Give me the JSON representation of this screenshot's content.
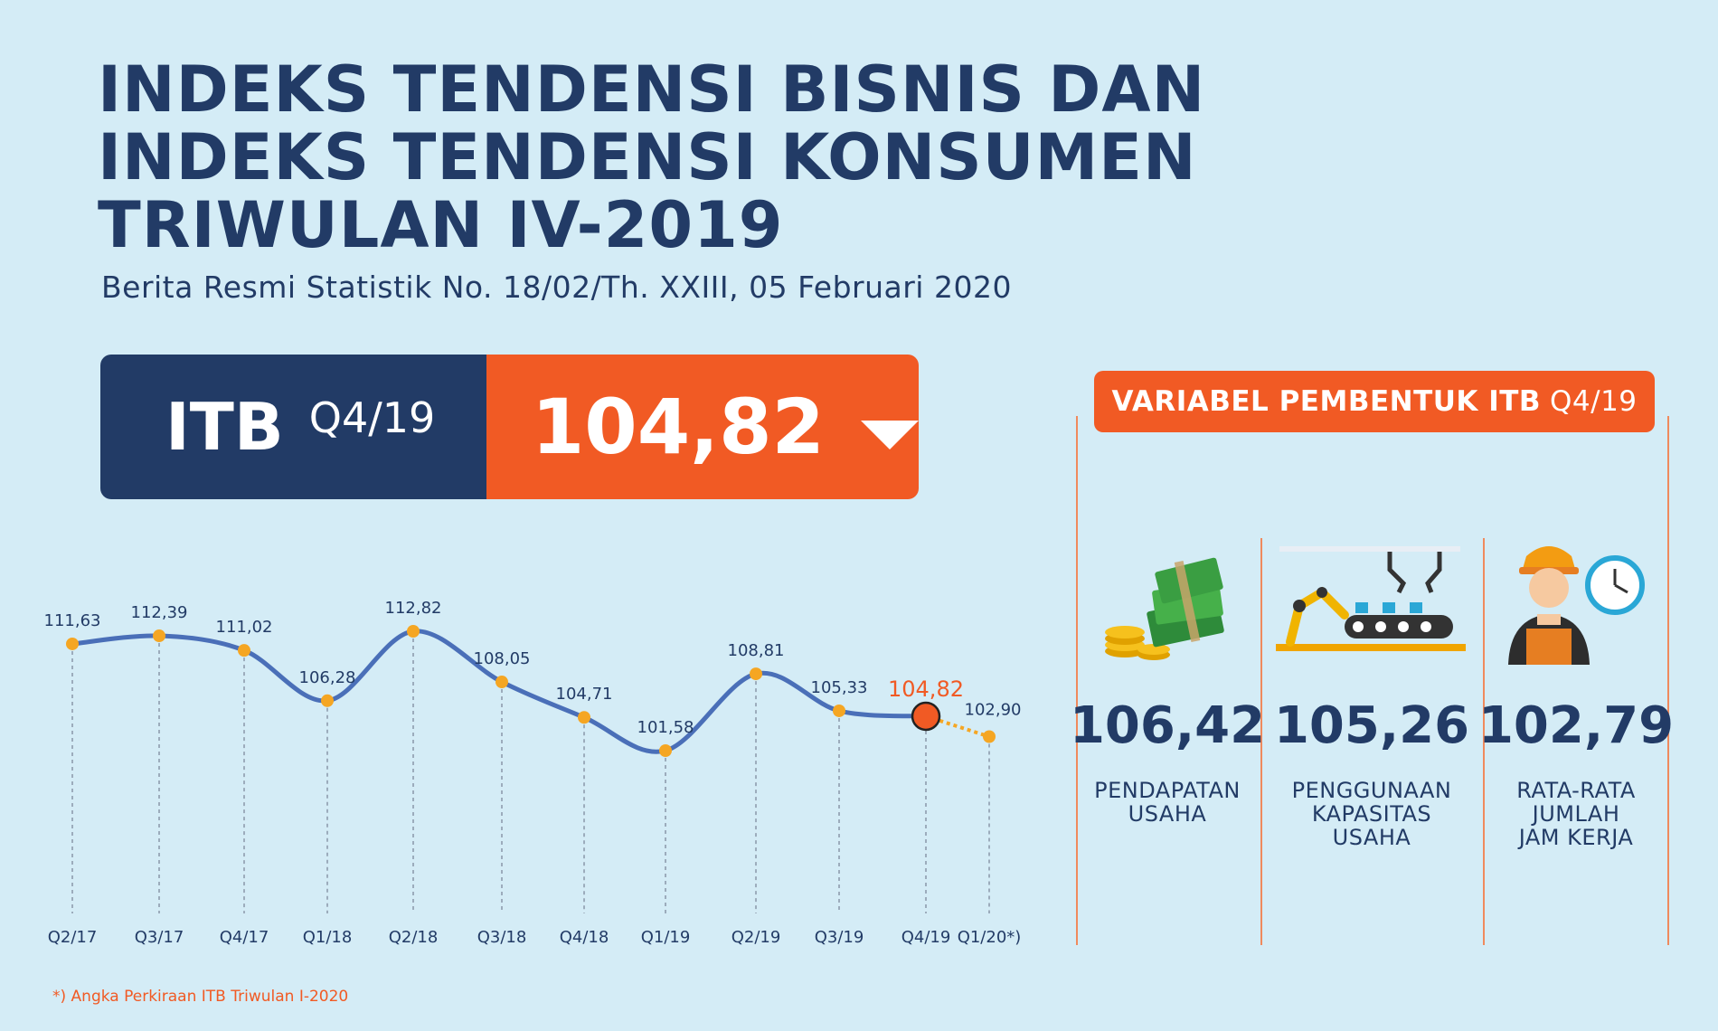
{
  "title_lines": [
    "INDEKS TENDENSI BISNIS DAN",
    "INDEKS TENDENSI KONSUMEN",
    "TRIWULAN IV-2019"
  ],
  "subtitle": "Berita Resmi Statistik No. 18/02/Th. XXIII, 05 Februari 2020",
  "itb": {
    "label": "ITB",
    "period": "Q4/19",
    "value": "104,82",
    "trend_icon": "down-triangle-icon"
  },
  "variables": {
    "heading": "VARIABEL PEMBENTUK ITB",
    "period": "Q4/19",
    "items": [
      {
        "value": "106,42",
        "label_lines": [
          "PENDAPATAN",
          "USAHA"
        ],
        "icon": "money-icon"
      },
      {
        "value": "105,26",
        "label_lines": [
          "PENGGUNAAN",
          "KAPASITAS",
          "USAHA"
        ],
        "icon": "factory-robot-icon"
      },
      {
        "value": "102,79",
        "label_lines": [
          "RATA-RATA",
          "JUMLAH",
          "JAM KERJA"
        ],
        "icon": "worker-clock-icon"
      }
    ]
  },
  "footnote": {
    "mark": "*)",
    "text": " Angka Perkiraan ITB Triwulan I-2020"
  },
  "colors": {
    "navy": "#223b66",
    "orange": "#f15a24",
    "line": "#4a6fb8",
    "point": "#f5a623",
    "background": "#d4ecf6"
  },
  "chart_data": {
    "type": "line",
    "categories": [
      "Q2/17",
      "Q3/17",
      "Q4/17",
      "Q1/18",
      "Q2/18",
      "Q3/18",
      "Q4/18",
      "Q1/19",
      "Q2/19",
      "Q3/19",
      "Q4/19",
      "Q1/20"
    ],
    "tick_labels": [
      "Q2/17",
      "Q3/17",
      "Q4/17",
      "Q1/18",
      "Q2/18",
      "Q3/18",
      "Q4/18",
      "Q1/19",
      "Q2/19",
      "Q3/19",
      "Q4/19",
      "Q1/20*)"
    ],
    "values": [
      111.63,
      112.39,
      111.02,
      106.28,
      112.82,
      108.05,
      104.71,
      101.58,
      108.81,
      105.33,
      104.82,
      102.9
    ],
    "value_labels": [
      "111,63",
      "112,39",
      "111,02",
      "106,28",
      "112,82",
      "108,05",
      "104,71",
      "101,58",
      "108,81",
      "105,33",
      "104,82",
      "102,90"
    ],
    "highlight_index": 10,
    "forecast_index": 11,
    "title": "",
    "xlabel": "",
    "ylabel": "",
    "grid": false
  }
}
